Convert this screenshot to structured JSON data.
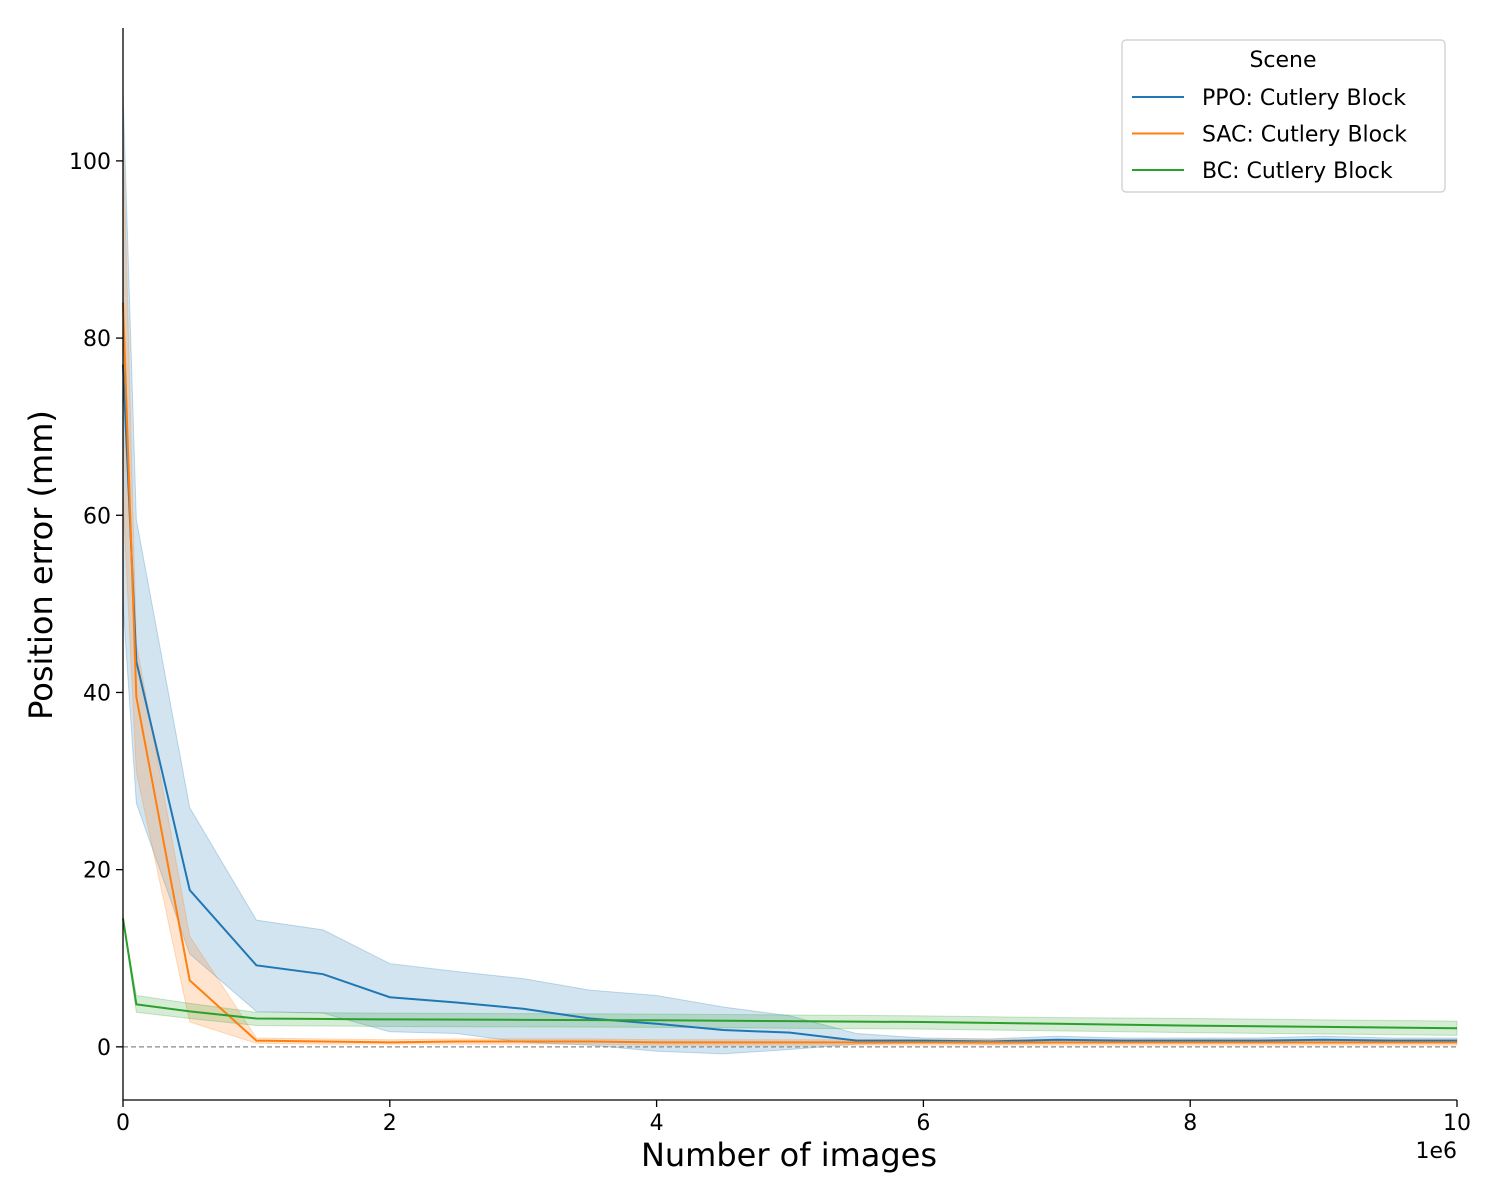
{
  "chart_data": {
    "type": "line",
    "xlabel": "Number of images",
    "ylabel": "Position error (mm)",
    "x_offset_label": "1e6",
    "x_scale": 1000000,
    "xlim": [
      0,
      10000000
    ],
    "ylim": [
      -6,
      115
    ],
    "xticks": [
      0,
      2000000,
      4000000,
      6000000,
      8000000,
      10000000
    ],
    "xtick_labels": [
      "0",
      "2",
      "4",
      "6",
      "8",
      "10"
    ],
    "yticks": [
      0,
      20,
      40,
      60,
      80,
      100
    ],
    "ytick_labels": [
      "0",
      "20",
      "40",
      "60",
      "80",
      "100"
    ],
    "reference_line": {
      "y": 0,
      "style": "dashed",
      "color": "#888888"
    },
    "grid": false,
    "legend": {
      "title": "Scene",
      "position": "top-right"
    },
    "series": [
      {
        "name": "PPO: Cutlery Block",
        "color": "#1f77b4",
        "x": [
          0,
          100000,
          500000,
          1000000,
          1500000,
          2000000,
          2500000,
          3000000,
          3500000,
          4000000,
          4500000,
          5000000,
          5500000,
          6000000,
          6500000,
          7000000,
          7500000,
          8000000,
          8500000,
          9000000,
          9500000,
          10000000
        ],
        "y": [
          77,
          43.5,
          17.7,
          9.2,
          8.2,
          5.6,
          5.0,
          4.3,
          3.2,
          2.6,
          1.9,
          1.6,
          0.7,
          0.7,
          0.6,
          0.8,
          0.7,
          0.7,
          0.7,
          0.8,
          0.7,
          0.7
        ],
        "lower": [
          50,
          27.5,
          10.5,
          4.0,
          3.8,
          1.7,
          1.5,
          0.5,
          0.2,
          -0.5,
          -0.8,
          -0.3,
          0.3,
          0.4,
          0.3,
          0.4,
          0.4,
          0.4,
          0.4,
          0.4,
          0.4,
          0.4
        ],
        "upper": [
          108,
          59.5,
          27.0,
          14.3,
          13.2,
          9.4,
          8.5,
          7.7,
          6.4,
          5.8,
          4.5,
          3.5,
          1.5,
          1.0,
          0.9,
          1.2,
          1.0,
          1.0,
          1.0,
          1.2,
          1.0,
          1.0
        ]
      },
      {
        "name": "SAC: Cutlery Block",
        "color": "#ff7f0e",
        "x": [
          0,
          100000,
          500000,
          1000000,
          1500000,
          2000000,
          2500000,
          3000000,
          3500000,
          4000000,
          4500000,
          5000000,
          5500000,
          6000000,
          6500000,
          7000000,
          7500000,
          8000000,
          8500000,
          9000000,
          9500000,
          10000000
        ],
        "y": [
          84,
          39.5,
          7.5,
          0.7,
          0.6,
          0.5,
          0.6,
          0.6,
          0.6,
          0.5,
          0.5,
          0.5,
          0.5,
          0.5,
          0.5,
          0.5,
          0.5,
          0.5,
          0.5,
          0.5,
          0.5,
          0.5
        ],
        "lower": [
          62,
          31.0,
          2.8,
          0.4,
          0.3,
          0.3,
          0.3,
          0.3,
          0.3,
          0.2,
          0.2,
          0.2,
          0.2,
          0.2,
          0.2,
          0.2,
          0.2,
          0.2,
          0.2,
          0.2,
          0.2,
          0.2
        ],
        "upper": [
          104,
          45.5,
          12.5,
          1.0,
          0.9,
          0.8,
          0.9,
          0.9,
          0.9,
          0.8,
          0.8,
          0.8,
          0.8,
          0.8,
          0.8,
          0.8,
          0.8,
          0.8,
          0.8,
          0.8,
          0.8,
          0.8
        ]
      },
      {
        "name": "BC: Cutlery Block",
        "color": "#2ca02c",
        "x": [
          0,
          100000,
          500000,
          1000000,
          2000000,
          3000000,
          4000000,
          5000000,
          6000000,
          7000000,
          8000000,
          9000000,
          10000000
        ],
        "y": [
          14.5,
          4.8,
          4.0,
          3.2,
          3.1,
          3.05,
          3.0,
          2.9,
          2.8,
          2.6,
          2.4,
          2.25,
          2.1
        ],
        "lower": [
          14.5,
          3.9,
          3.2,
          2.4,
          2.3,
          2.25,
          2.2,
          2.1,
          2.0,
          1.8,
          1.6,
          1.45,
          1.3
        ],
        "upper": [
          14.5,
          5.8,
          4.9,
          3.9,
          3.8,
          3.75,
          3.7,
          3.6,
          3.5,
          3.3,
          3.2,
          3.05,
          2.9
        ]
      }
    ]
  }
}
